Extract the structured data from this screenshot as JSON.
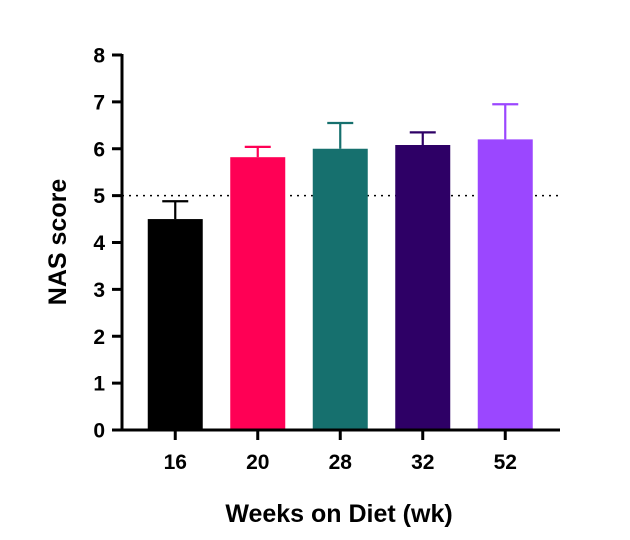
{
  "chart_data": {
    "type": "bar",
    "categories": [
      "16",
      "20",
      "28",
      "32",
      "52"
    ],
    "values": [
      4.5,
      5.82,
      6.0,
      6.08,
      6.2
    ],
    "errors": [
      0.38,
      0.22,
      0.55,
      0.27,
      0.75
    ],
    "colors": [
      "#000000",
      "#ff0055",
      "#16706e",
      "#2e0066",
      "#9b47ff"
    ],
    "ylim": [
      0,
      8
    ],
    "yticks": [
      "0",
      "1",
      "2",
      "3",
      "4",
      "5",
      "6",
      "7",
      "8"
    ],
    "reference_line": 5,
    "xlabel": "Weeks on Diet (wk)",
    "ylabel": "NAS score",
    "grid": false,
    "legend": false
  }
}
